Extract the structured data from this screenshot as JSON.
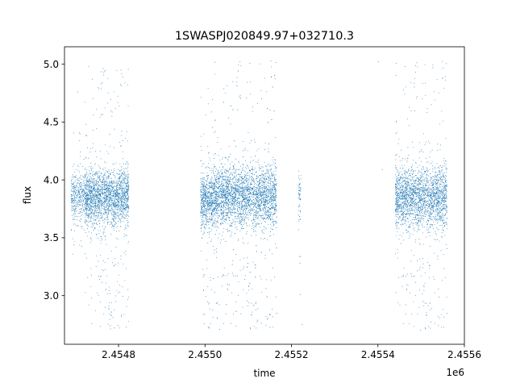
{
  "chart_data": {
    "type": "scatter",
    "title": "1SWASPJ020849.97+032710.3",
    "xlabel": "time",
    "ylabel": "flux",
    "x_offset_label": "1e6",
    "xlim": [
      2454675,
      2455600
    ],
    "ylim": [
      2.58,
      5.15
    ],
    "x_ticks": [
      2454800,
      2455000,
      2455200,
      2455400,
      2455600
    ],
    "x_tick_labels": [
      "2.4548",
      "2.4550",
      "2.4552",
      "2.4554",
      "2.4556"
    ],
    "y_ticks": [
      3.0,
      3.5,
      4.0,
      4.5,
      5.0
    ],
    "y_tick_labels": [
      "3.0",
      "3.5",
      "4.0",
      "4.5",
      "5.0"
    ],
    "grid": false,
    "series": [
      {
        "color": "#1f77b4",
        "segments": [
          {
            "x_range": [
              2454690,
              2454722
            ],
            "center": 3.86,
            "spread": 0.1,
            "tail_low": 3.3,
            "tail_high": 4.45,
            "count": 380
          },
          {
            "x_range": [
              2454722,
              2454824
            ],
            "center": 3.85,
            "spread": 0.12,
            "tail_low": 2.7,
            "tail_high": 4.98,
            "count": 2300
          },
          {
            "x_range": [
              2454990,
              2455020
            ],
            "center": 3.83,
            "spread": 0.12,
            "tail_low": 2.7,
            "tail_high": 4.82,
            "count": 700
          },
          {
            "x_range": [
              2455020,
              2455166
            ],
            "center": 3.86,
            "spread": 0.13,
            "tail_low": 2.7,
            "tail_high": 5.04,
            "count": 3400
          },
          {
            "x_range": [
              2455216,
              2455222
            ],
            "center": 3.86,
            "spread": 0.1,
            "tail_low": 3.02,
            "tail_high": 4.3,
            "count": 60
          },
          {
            "x_range": [
              2455440,
              2455560
            ],
            "center": 3.85,
            "spread": 0.13,
            "tail_low": 2.7,
            "tail_high": 5.03,
            "count": 2400
          }
        ],
        "outliers": [
          [
            2454767,
            4.94
          ],
          [
            2454705,
            4.76
          ],
          [
            2454781,
            2.74
          ],
          [
            2455220,
            3.01
          ],
          [
            2455225,
            2.75
          ],
          [
            2455410,
            4.09
          ],
          [
            2455401,
            5.02
          ],
          [
            2455463,
            4.98
          ],
          [
            2455527,
            4.97
          ],
          [
            2455498,
            2.7
          ],
          [
            2454790,
            2.72
          ],
          [
            2455034,
            2.71
          ]
        ]
      }
    ]
  }
}
